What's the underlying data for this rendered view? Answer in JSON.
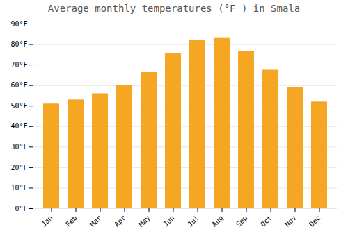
{
  "chart_data": {
    "type": "bar",
    "title": "Average monthly temperatures (°F ) in Smala",
    "categories": [
      "Jan",
      "Feb",
      "Mar",
      "Apr",
      "May",
      "Jun",
      "Jul",
      "Aug",
      "Sep",
      "Oct",
      "Nov",
      "Dec"
    ],
    "values": [
      51,
      53,
      56,
      60,
      66.5,
      75.5,
      82,
      83,
      76.5,
      67.5,
      59,
      52
    ],
    "color": "#F5A623",
    "ylim": [
      0,
      90
    ],
    "yticks": [
      {
        "value": 0,
        "label": "0°F"
      },
      {
        "value": 10,
        "label": "10°F"
      },
      {
        "value": 20,
        "label": "20°F"
      },
      {
        "value": 30,
        "label": "30°F"
      },
      {
        "value": 40,
        "label": "40°F"
      },
      {
        "value": 50,
        "label": "50°F"
      },
      {
        "value": 60,
        "label": "60°F"
      },
      {
        "value": 70,
        "label": "70°F"
      },
      {
        "value": 80,
        "label": "80°F"
      },
      {
        "value": 90,
        "label": "90°F"
      }
    ],
    "grid": true
  }
}
